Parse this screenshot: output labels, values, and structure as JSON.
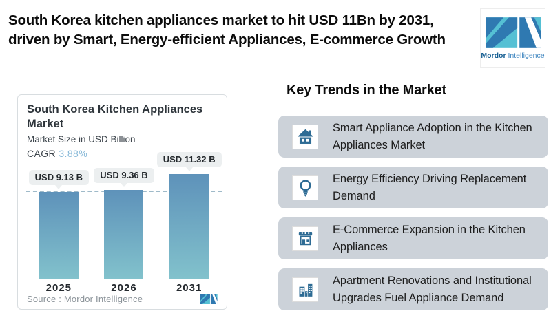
{
  "header": {
    "title_line1": "South Korea kitchen appliances market to hit USD 11Bn by 2031,",
    "title_line2": "driven by Smart, Energy-efficient Appliances, E-commerce Growth"
  },
  "logo": {
    "brand_bold": "Mordor",
    "brand_regular": "Intelligence"
  },
  "chart_card": {
    "title_line1": "South Korea Kitchen Appliances",
    "title_line2": "Market",
    "subtitle": "Market Size in USD Billion",
    "cagr_label": "CAGR",
    "cagr_value": "3.88%",
    "source": "Source : Mordor Intelligence"
  },
  "chart_data": {
    "type": "bar",
    "title": "South Korea Kitchen Appliances Market",
    "subtitle": "Market Size in USD Billion",
    "cagr_percent": 3.88,
    "categories": [
      "2025",
      "2026",
      "2031"
    ],
    "values": [
      9.13,
      9.36,
      11.32
    ],
    "bar_labels": [
      "USD 9.13 B",
      "USD 9.36 B",
      "USD 11.32 B"
    ],
    "unit": "USD Billion",
    "ylim": [
      0,
      12
    ],
    "dashed_reference_value": 9.13,
    "legend": "none",
    "gridlines": "off",
    "colors": {
      "bar_top": "#5e92ba",
      "bar_bottom": "#82c2cc",
      "dashed_line": "#9fbac9",
      "label_box_bg": "#eceff0"
    }
  },
  "trends": {
    "heading": "Key Trends in the Market",
    "items": [
      {
        "icon": "home-icon",
        "line1": "Smart Appliance Adoption in the Kitchen",
        "line2": "Appliances Market"
      },
      {
        "icon": "lightbulb-icon",
        "line1": "Energy Efficiency Driving Replacement",
        "line2": "Demand"
      },
      {
        "icon": "storefront-icon",
        "line1": "E-Commerce Expansion in the Kitchen",
        "line2": "Appliances"
      },
      {
        "icon": "buildings-icon",
        "line1": "Apartment Renovations and Institutional",
        "line2": "Upgrades Fuel Appliance Demand"
      }
    ]
  },
  "colors": {
    "logo_teal": "#55c0d4",
    "logo_blue": "#2f79b1",
    "icon_blue": "#2d6b94",
    "trend_pill_bg": "#ccd2d9",
    "cagr_value_blue": "#88b9d8"
  }
}
